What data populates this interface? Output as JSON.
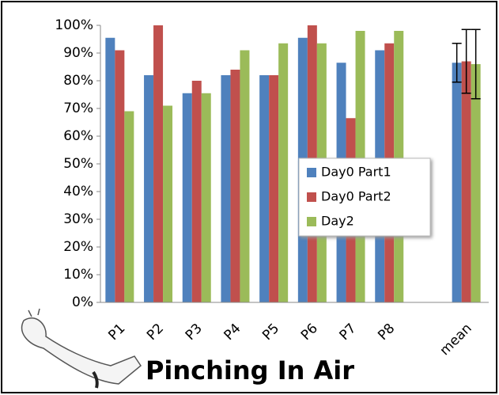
{
  "chart_data": {
    "type": "bar",
    "title": "Pinching In Air",
    "categories": [
      "P1",
      "P2",
      "P3",
      "P4",
      "P5",
      "P6",
      "P7",
      "P8",
      null,
      "mean"
    ],
    "series": [
      {
        "name": "Day0 Part1",
        "color": "#4f81bd",
        "values": [
          95.5,
          82,
          75.5,
          82,
          82,
          95.5,
          86.5,
          91,
          null,
          86.5
        ],
        "errors": [
          null,
          null,
          null,
          null,
          null,
          null,
          null,
          null,
          null,
          7
        ]
      },
      {
        "name": "Day0 Part2",
        "color": "#c0504d",
        "values": [
          91,
          100,
          80,
          84,
          82,
          100,
          66.5,
          93.5,
          null,
          87
        ],
        "errors": [
          null,
          null,
          null,
          null,
          null,
          null,
          null,
          null,
          null,
          11.5
        ]
      },
      {
        "name": "Day2",
        "color": "#9bbb59",
        "values": [
          69,
          71,
          75.5,
          91,
          93.5,
          93.5,
          98,
          98,
          null,
          86
        ],
        "errors": [
          null,
          null,
          null,
          null,
          null,
          null,
          null,
          null,
          null,
          12.5
        ]
      }
    ],
    "ylim": [
      0,
      100
    ],
    "yticks": [
      {
        "value": 0,
        "label": "0%"
      },
      {
        "value": 10,
        "label": "10%"
      },
      {
        "value": 20,
        "label": "20%"
      },
      {
        "value": 30,
        "label": "30%"
      },
      {
        "value": 40,
        "label": "40%"
      },
      {
        "value": 50,
        "label": "50%"
      },
      {
        "value": 60,
        "label": "60%"
      },
      {
        "value": 70,
        "label": "70%"
      },
      {
        "value": 80,
        "label": "80%"
      },
      {
        "value": 90,
        "label": "90%"
      },
      {
        "value": 100,
        "label": "100%"
      }
    ],
    "grid": false,
    "legend": "center-right"
  }
}
